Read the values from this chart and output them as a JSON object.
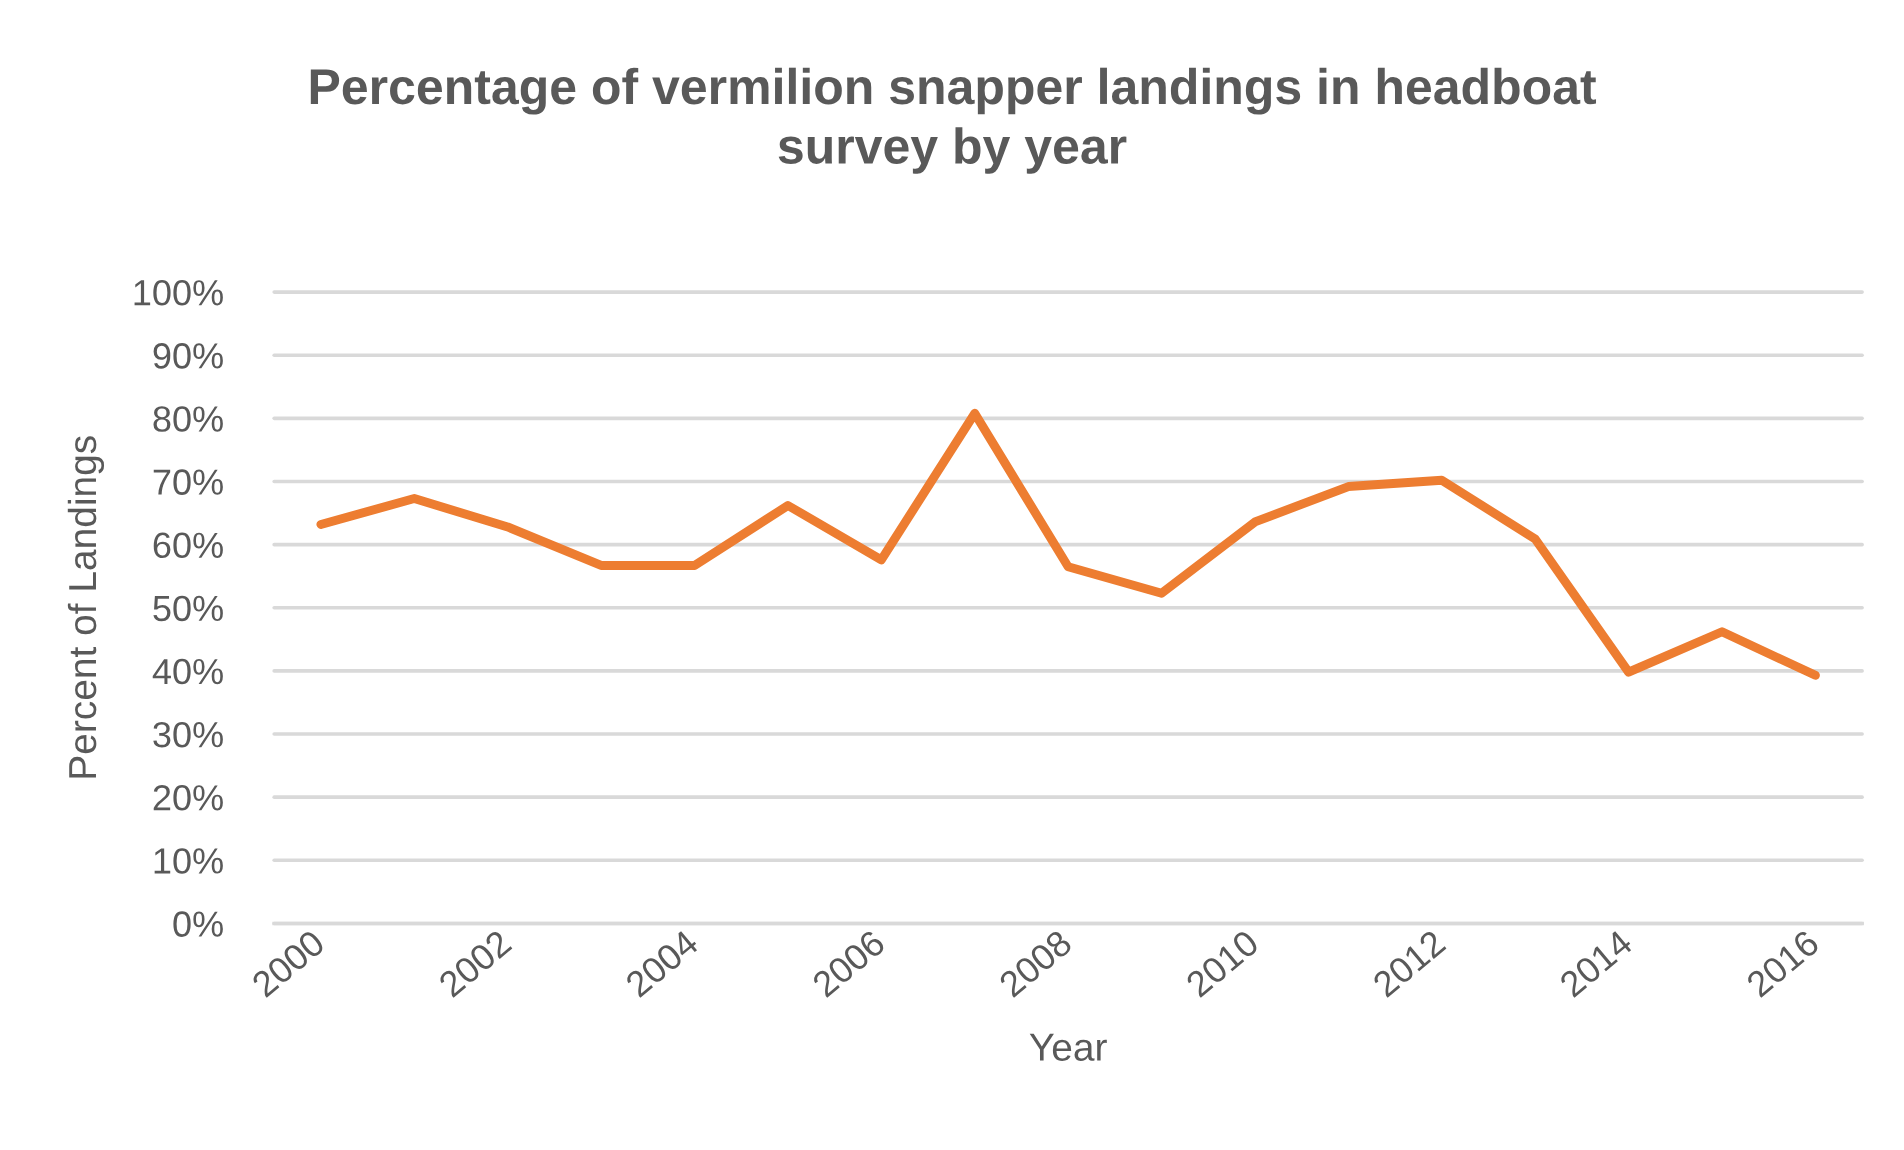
{
  "chart_data": {
    "type": "line",
    "title": "Percentage of vermilion snapper landings in headboat survey by year",
    "xlabel": "Year",
    "ylabel": "Percent of Landings",
    "x": [
      2000,
      2001,
      2002,
      2003,
      2004,
      2005,
      2006,
      2007,
      2008,
      2009,
      2010,
      2011,
      2012,
      2013,
      2014,
      2015,
      2016
    ],
    "series": [
      {
        "color": "#ed7d31",
        "values": [
          63.2,
          67.3,
          62.8,
          56.7,
          56.7,
          66.2,
          57.6,
          80.8,
          56.5,
          52.3,
          63.6,
          69.2,
          70.2,
          60.9,
          39.8,
          46.2,
          39.3
        ]
      }
    ],
    "xlim": [
      1999.5,
      2016.5
    ],
    "xticks": [
      2000,
      2002,
      2004,
      2006,
      2008,
      2010,
      2012,
      2014,
      2016
    ],
    "ylim": [
      0,
      100
    ],
    "yticks": [
      {
        "value": 0,
        "label": "0%"
      },
      {
        "value": 10,
        "label": "10%"
      },
      {
        "value": 20,
        "label": "20%"
      },
      {
        "value": 30,
        "label": "30%"
      },
      {
        "value": 40,
        "label": "40%"
      },
      {
        "value": 50,
        "label": "50%"
      },
      {
        "value": 60,
        "label": "60%"
      },
      {
        "value": 70,
        "label": "70%"
      },
      {
        "value": 80,
        "label": "80%"
      },
      {
        "value": 90,
        "label": "90%"
      },
      {
        "value": 100,
        "label": "100%"
      }
    ],
    "grid": "y",
    "line_style": "solid"
  }
}
